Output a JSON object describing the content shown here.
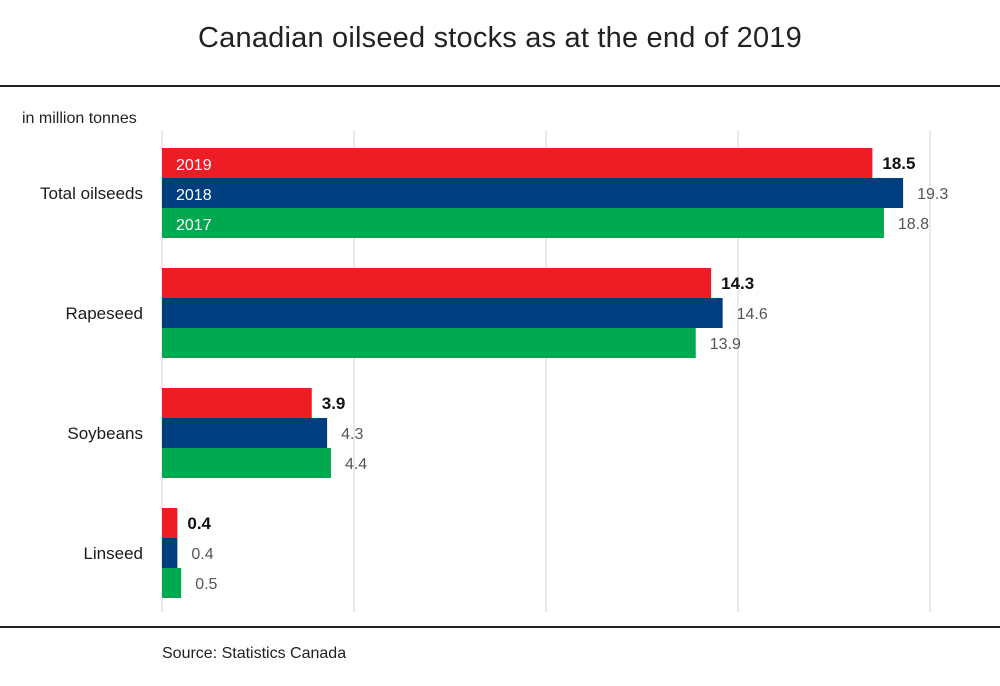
{
  "chart_data": {
    "type": "bar",
    "orientation": "horizontal",
    "title": "Canadian oilseed stocks as at the end of 2019",
    "unit_label": "in million tonnes",
    "source": "Source:  Statistics Canada",
    "categories": [
      "Total oilseeds",
      "Rapeseed",
      "Soybeans",
      "Linseed"
    ],
    "series": [
      {
        "name": "2019",
        "color": "#ee1c25",
        "values": [
          18.5,
          14.3,
          3.9,
          0.4
        ],
        "label_values": [
          "18.5",
          "14.3",
          "3.9",
          "0.4"
        ]
      },
      {
        "name": "2018",
        "color": "#003f7f",
        "values": [
          19.3,
          14.6,
          4.3,
          0.4
        ],
        "label_values": [
          "19.3",
          "14.6",
          "4.3",
          "0.4"
        ]
      },
      {
        "name": "2017",
        "color": "#00a94f",
        "values": [
          18.8,
          13.9,
          4.4,
          0.5
        ],
        "label_values": [
          "18.8",
          "13.9",
          "4.4",
          "0.5"
        ]
      }
    ],
    "xlim": [
      0,
      20
    ],
    "gridlines_x": [
      0,
      5,
      10,
      15,
      20
    ],
    "grid": true,
    "legend_placement": "inside-first-group-bars"
  }
}
